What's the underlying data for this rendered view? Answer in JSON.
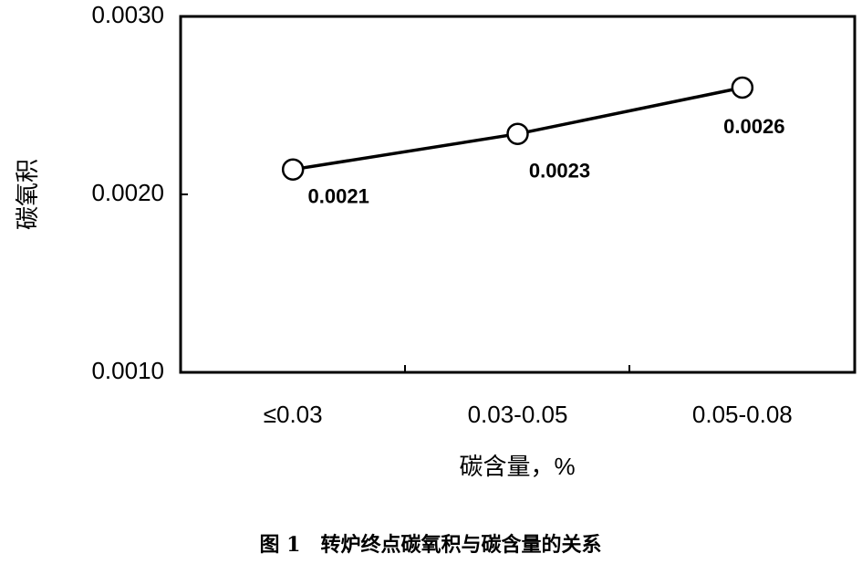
{
  "chart_data": {
    "type": "line",
    "caption": "图 1　转炉终点碳氧积与碳含量的关系",
    "y_label": "碳氧积",
    "x_label": "碳含量，%",
    "categories": [
      "≤0.03",
      "0.03-0.05",
      "0.05-0.08"
    ],
    "values": [
      0.00214,
      0.00234,
      0.0026
    ],
    "value_labels": [
      "0.0021",
      "0.0023",
      "0.0026"
    ],
    "color": "#000000",
    "ylim": [
      0.001,
      0.003
    ],
    "yticks": [
      {
        "value": 0.001,
        "label": "0.0010"
      },
      {
        "value": 0.002,
        "label": "0.0020"
      },
      {
        "value": 0.003,
        "label": "0.0030"
      }
    ],
    "grid": false
  }
}
